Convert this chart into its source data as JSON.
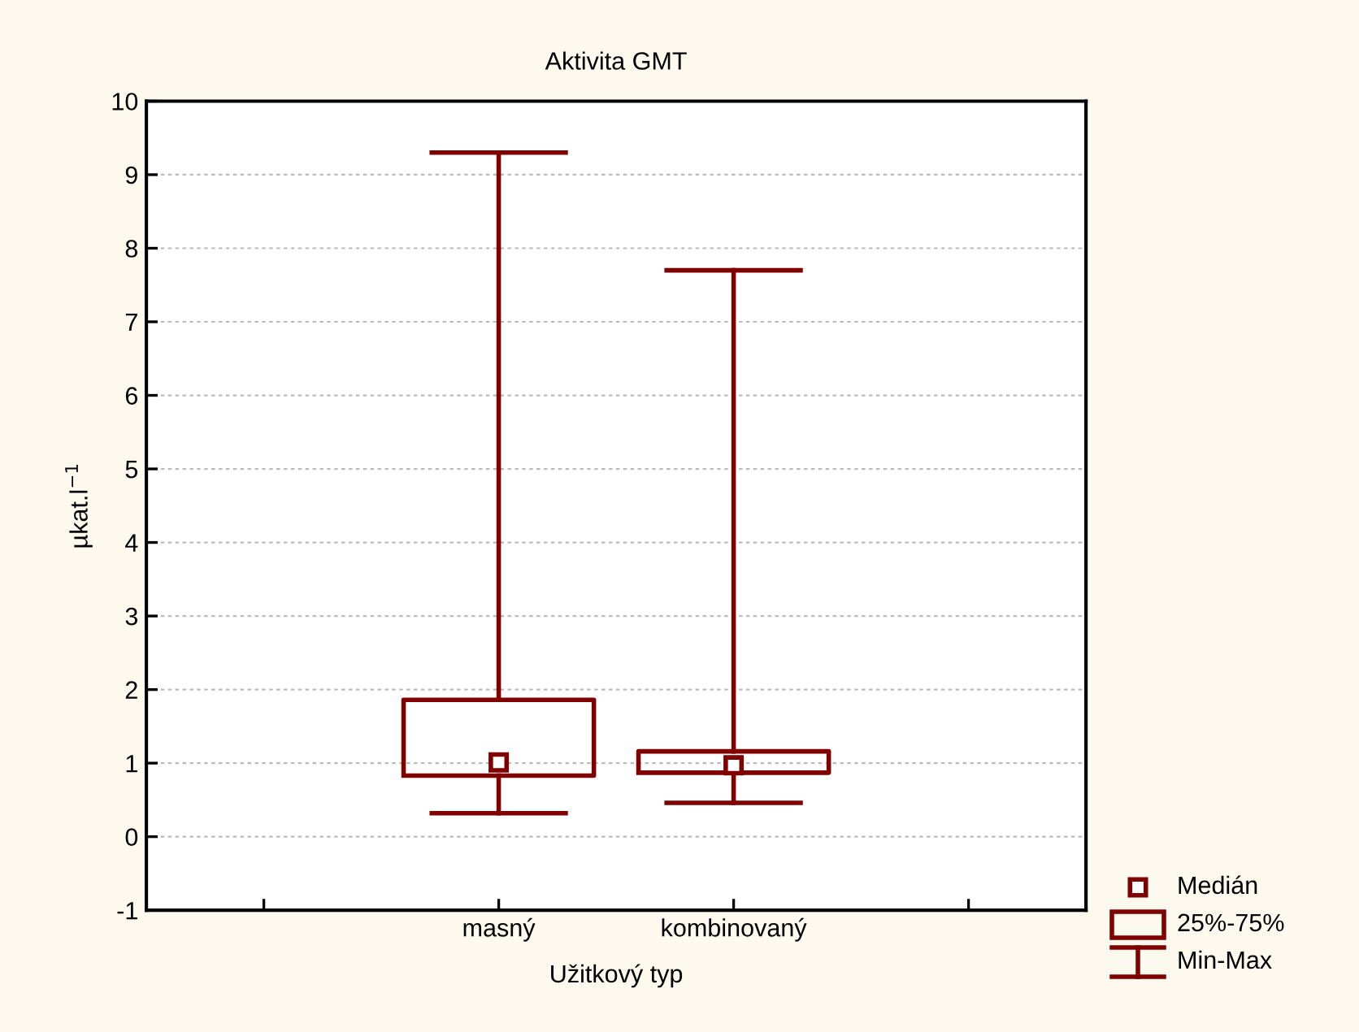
{
  "chart_data": {
    "type": "box",
    "title": "Aktivita GMT",
    "xlabel": "Užitkový typ",
    "ylabel": "µkat.l$^{−1}$",
    "categories": [
      "masný",
      "kombinovaný"
    ],
    "boxes": [
      {
        "low": 0.32,
        "q1": 0.83,
        "median": 1.01,
        "q3": 1.86,
        "high": 9.3
      },
      {
        "low": 0.46,
        "q1": 0.87,
        "median": 0.97,
        "q3": 1.16,
        "high": 7.7
      }
    ],
    "color": "#800000",
    "ylim": [
      -1,
      10
    ],
    "yticks": [
      -1,
      0,
      1,
      2,
      3,
      4,
      5,
      6,
      7,
      8,
      9,
      10
    ],
    "grid": "y",
    "annotations": [
      "Medián",
      "25%-75%",
      "Min-Max"
    ]
  }
}
